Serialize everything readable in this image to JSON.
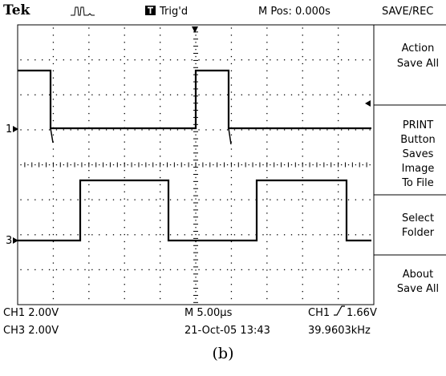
{
  "header": {
    "brand": "Tek",
    "trigger_status": "Trig'd",
    "trigger_icon": "trigger-T-icon",
    "acquisition_icon": "pulse-waveform-icon",
    "horizontal_position": "M Pos: 0.000s",
    "menu_title": "SAVE/REC"
  },
  "side_menu": {
    "items": [
      {
        "line1": "Action",
        "line2": "Save All"
      },
      {
        "line1": "PRINT",
        "line2": "Button",
        "line3": "Saves",
        "line4": "Image",
        "line5": "To File"
      },
      {
        "line1": "Select",
        "line2": "Folder"
      },
      {
        "line1": "About",
        "line2": "Save All"
      }
    ]
  },
  "graticule": {
    "divisions_x": 10,
    "divisions_y": 8,
    "ch1_marker": "1",
    "ch3_marker": "3"
  },
  "readout": {
    "ch1_scale": "CH1  2.00V",
    "ch3_scale": "CH3  2.00V",
    "timebase": "M 5.00µs",
    "date_time": "21-Oct-05 13:43",
    "trigger_source": "CH1",
    "trigger_level": "1.66V",
    "frequency": "39.9603kHz"
  },
  "caption": "(b)",
  "colors": {
    "trace": "#000000",
    "background": "#ffffff",
    "grid": "#000000"
  }
}
